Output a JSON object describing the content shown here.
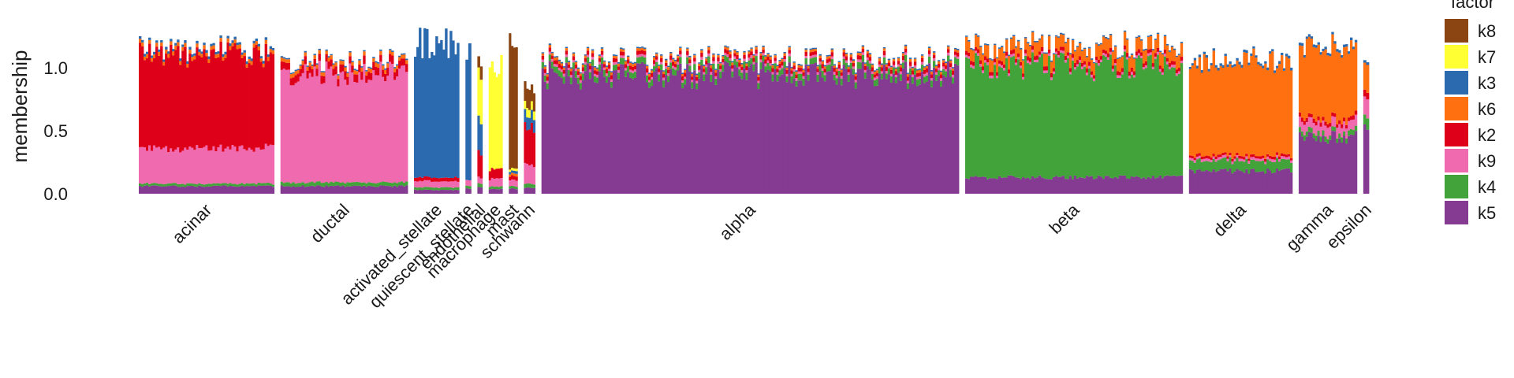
{
  "chart_data": {
    "type": "bar",
    "stacked": true,
    "ylabel": "membership",
    "ylim": [
      0,
      1.35
    ],
    "yticks": [
      {
        "value": 0.0,
        "label": "0.0"
      },
      {
        "value": 0.5,
        "label": "0.5"
      },
      {
        "value": 1.0,
        "label": "1.0"
      }
    ],
    "grid": false,
    "legend": {
      "title": "factor",
      "placement": "right",
      "entries": [
        {
          "key": "k8",
          "label": "k8",
          "color": "#8B4513"
        },
        {
          "key": "k7",
          "label": "k7",
          "color": "#FFFF33"
        },
        {
          "key": "k3",
          "label": "k3",
          "color": "#2B6AAE"
        },
        {
          "key": "k6",
          "label": "k6",
          "color": "#FF7010"
        },
        {
          "key": "k2",
          "label": "k2",
          "color": "#DE0019"
        },
        {
          "key": "k9",
          "label": "k9",
          "color": "#F06AB0"
        },
        {
          "key": "k4",
          "label": "k4",
          "color": "#43A33B"
        },
        {
          "key": "k5",
          "label": "k5",
          "color": "#843B91"
        }
      ]
    },
    "stack_order_bottom_to_top": [
      "k5",
      "k4",
      "k9",
      "k2",
      "k6",
      "k3",
      "k7",
      "k8"
    ],
    "categories": [
      {
        "name": "acinar",
        "width_share": 0.108,
        "segments": {
          "k5": 0.06,
          "k4": 0.02,
          "k9": 0.28,
          "k2": 0.74,
          "k6": 0.03,
          "k3": 0.02
        }
      },
      {
        "name": "ductal",
        "width_share": 0.1015,
        "segments": {
          "k5": 0.06,
          "k4": 0.03,
          "k9": 0.86,
          "k2": 0.06,
          "k6": 0.03,
          "k3": 0.01
        }
      },
      {
        "name": "activated_stellate",
        "width_share": 0.036,
        "segments": {
          "k5": 0.03,
          "k4": 0.02,
          "k9": 0.05,
          "k2": 0.03,
          "k3": 1.07
        }
      },
      {
        "name": "quiescent_stellate",
        "width_share": 0.0045,
        "segments": {
          "k5": 0.04,
          "k4": 0.02,
          "k9": 0.05,
          "k3": 1.07
        }
      },
      {
        "name": "endothelial",
        "width_share": 0.004,
        "segments": {
          "k5": 0.05,
          "k4": 0.03,
          "k9": 0.05,
          "k2": 0.2,
          "k3": 0.25,
          "k7": 0.38,
          "k8": 0.1
        }
      },
      {
        "name": "macrophage",
        "width_share": 0.011,
        "segments": {
          "k5": 0.04,
          "k4": 0.02,
          "k9": 0.06,
          "k2": 0.08,
          "k7": 0.81
        }
      },
      {
        "name": "mast",
        "width_share": 0.007,
        "segments": {
          "k5": 0.04,
          "k4": 0.02,
          "k9": 0.05,
          "k2": 0.03,
          "k6": 0.02,
          "k3": 0.02,
          "k7": 0.02,
          "k8": 1.04
        }
      },
      {
        "name": "schwann",
        "width_share": 0.009,
        "segments": {
          "k5": 0.05,
          "k4": 0.03,
          "k9": 0.15,
          "k2": 0.3,
          "k3": 0.1,
          "k7": 0.07,
          "k8": 0.15
        }
      },
      {
        "name": "alpha",
        "width_share": 0.333,
        "segments": {
          "k5": 0.94,
          "k4": 0.05,
          "k9": 0.02,
          "k2": 0.03,
          "k6": 0.02,
          "k3": 0.01
        }
      },
      {
        "name": "beta",
        "width_share": 0.1735,
        "segments": {
          "k5": 0.13,
          "k4": 0.88,
          "k9": 0.02,
          "k2": 0.03,
          "k6": 0.1,
          "k3": 0.01
        }
      },
      {
        "name": "delta",
        "width_share": 0.0825,
        "segments": {
          "k5": 0.18,
          "k4": 0.08,
          "k9": 0.02,
          "k2": 0.02,
          "k6": 0.75,
          "k3": 0.02
        }
      },
      {
        "name": "gamma",
        "width_share": 0.0465,
        "segments": {
          "k5": 0.45,
          "k4": 0.04,
          "k9": 0.08,
          "k2": 0.03,
          "k6": 0.56,
          "k3": 0.02
        }
      },
      {
        "name": "epsilon",
        "width_share": 0.0045,
        "segments": {
          "k5": 0.55,
          "k4": 0.08,
          "k9": 0.15,
          "k2": 0.05,
          "k6": 0.22,
          "k3": 0.02
        }
      }
    ]
  }
}
